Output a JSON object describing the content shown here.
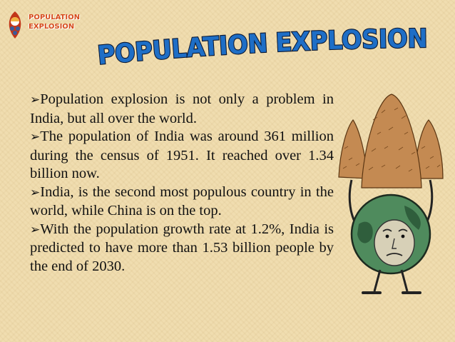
{
  "logo": {
    "line1": "POPULATION",
    "line2": "EXPLOSION",
    "emblem_icon": "crowd-emblem-icon"
  },
  "title": "POPULATION EXPLOSION",
  "colors": {
    "background": "#f0ddb0",
    "title_fill": "#1e6ec6",
    "title_outline": "#0b1730",
    "logo_text": "#d64a1a",
    "body_text": "#111111"
  },
  "bullet_icon": "arrow-check-bullet-icon",
  "bullets": [
    "Population explosion is not only a problem in India, but all over the world.",
    "The population of India was around 361 million during the census of 1951. It reached over 1.34 billion now.",
    "India, is the second most populous country in the world, while China is on the top.",
    "With the population growth rate at 1.2%, India is predicted to have more than 1.53 billion people by the end of 2030."
  ],
  "illustration": {
    "icon": "overpopulated-earth-cartoon-icon"
  }
}
